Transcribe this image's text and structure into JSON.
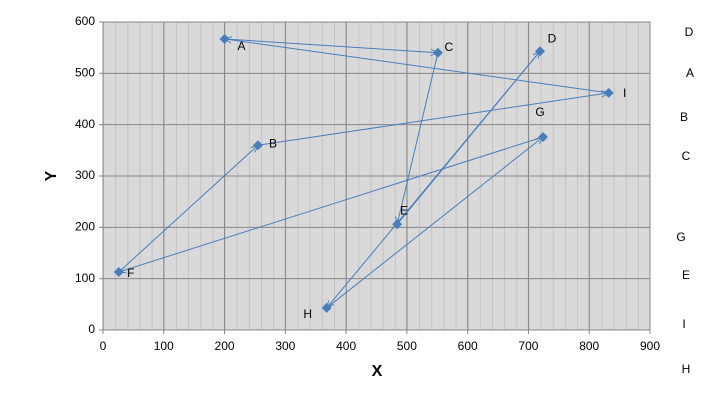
{
  "chart_data": {
    "type": "scatter",
    "x_label": "X",
    "y_label": "Y",
    "xlim": [
      0,
      900
    ],
    "xticks": [
      0,
      100,
      200,
      300,
      400,
      500,
      600,
      700,
      800,
      900
    ],
    "ylim": [
      0,
      600
    ],
    "yticks": [
      0,
      100,
      200,
      300,
      400,
      500,
      600
    ],
    "grid": true,
    "background": "#d9d9d9",
    "series": [
      {
        "color": "#4a7ebb",
        "point_labels": [
          "A",
          "C",
          "E",
          "D",
          "H",
          "G",
          "F",
          "B",
          "I"
        ],
        "x": [
          200,
          551,
          484,
          719,
          368,
          724,
          26,
          255,
          832
        ],
        "values": [
          567,
          540,
          206,
          543,
          43,
          376,
          113,
          360,
          462
        ]
      }
    ],
    "side_labels": [
      "D",
      "A",
      "B",
      "C",
      "G",
      "E",
      "I",
      "H"
    ]
  }
}
